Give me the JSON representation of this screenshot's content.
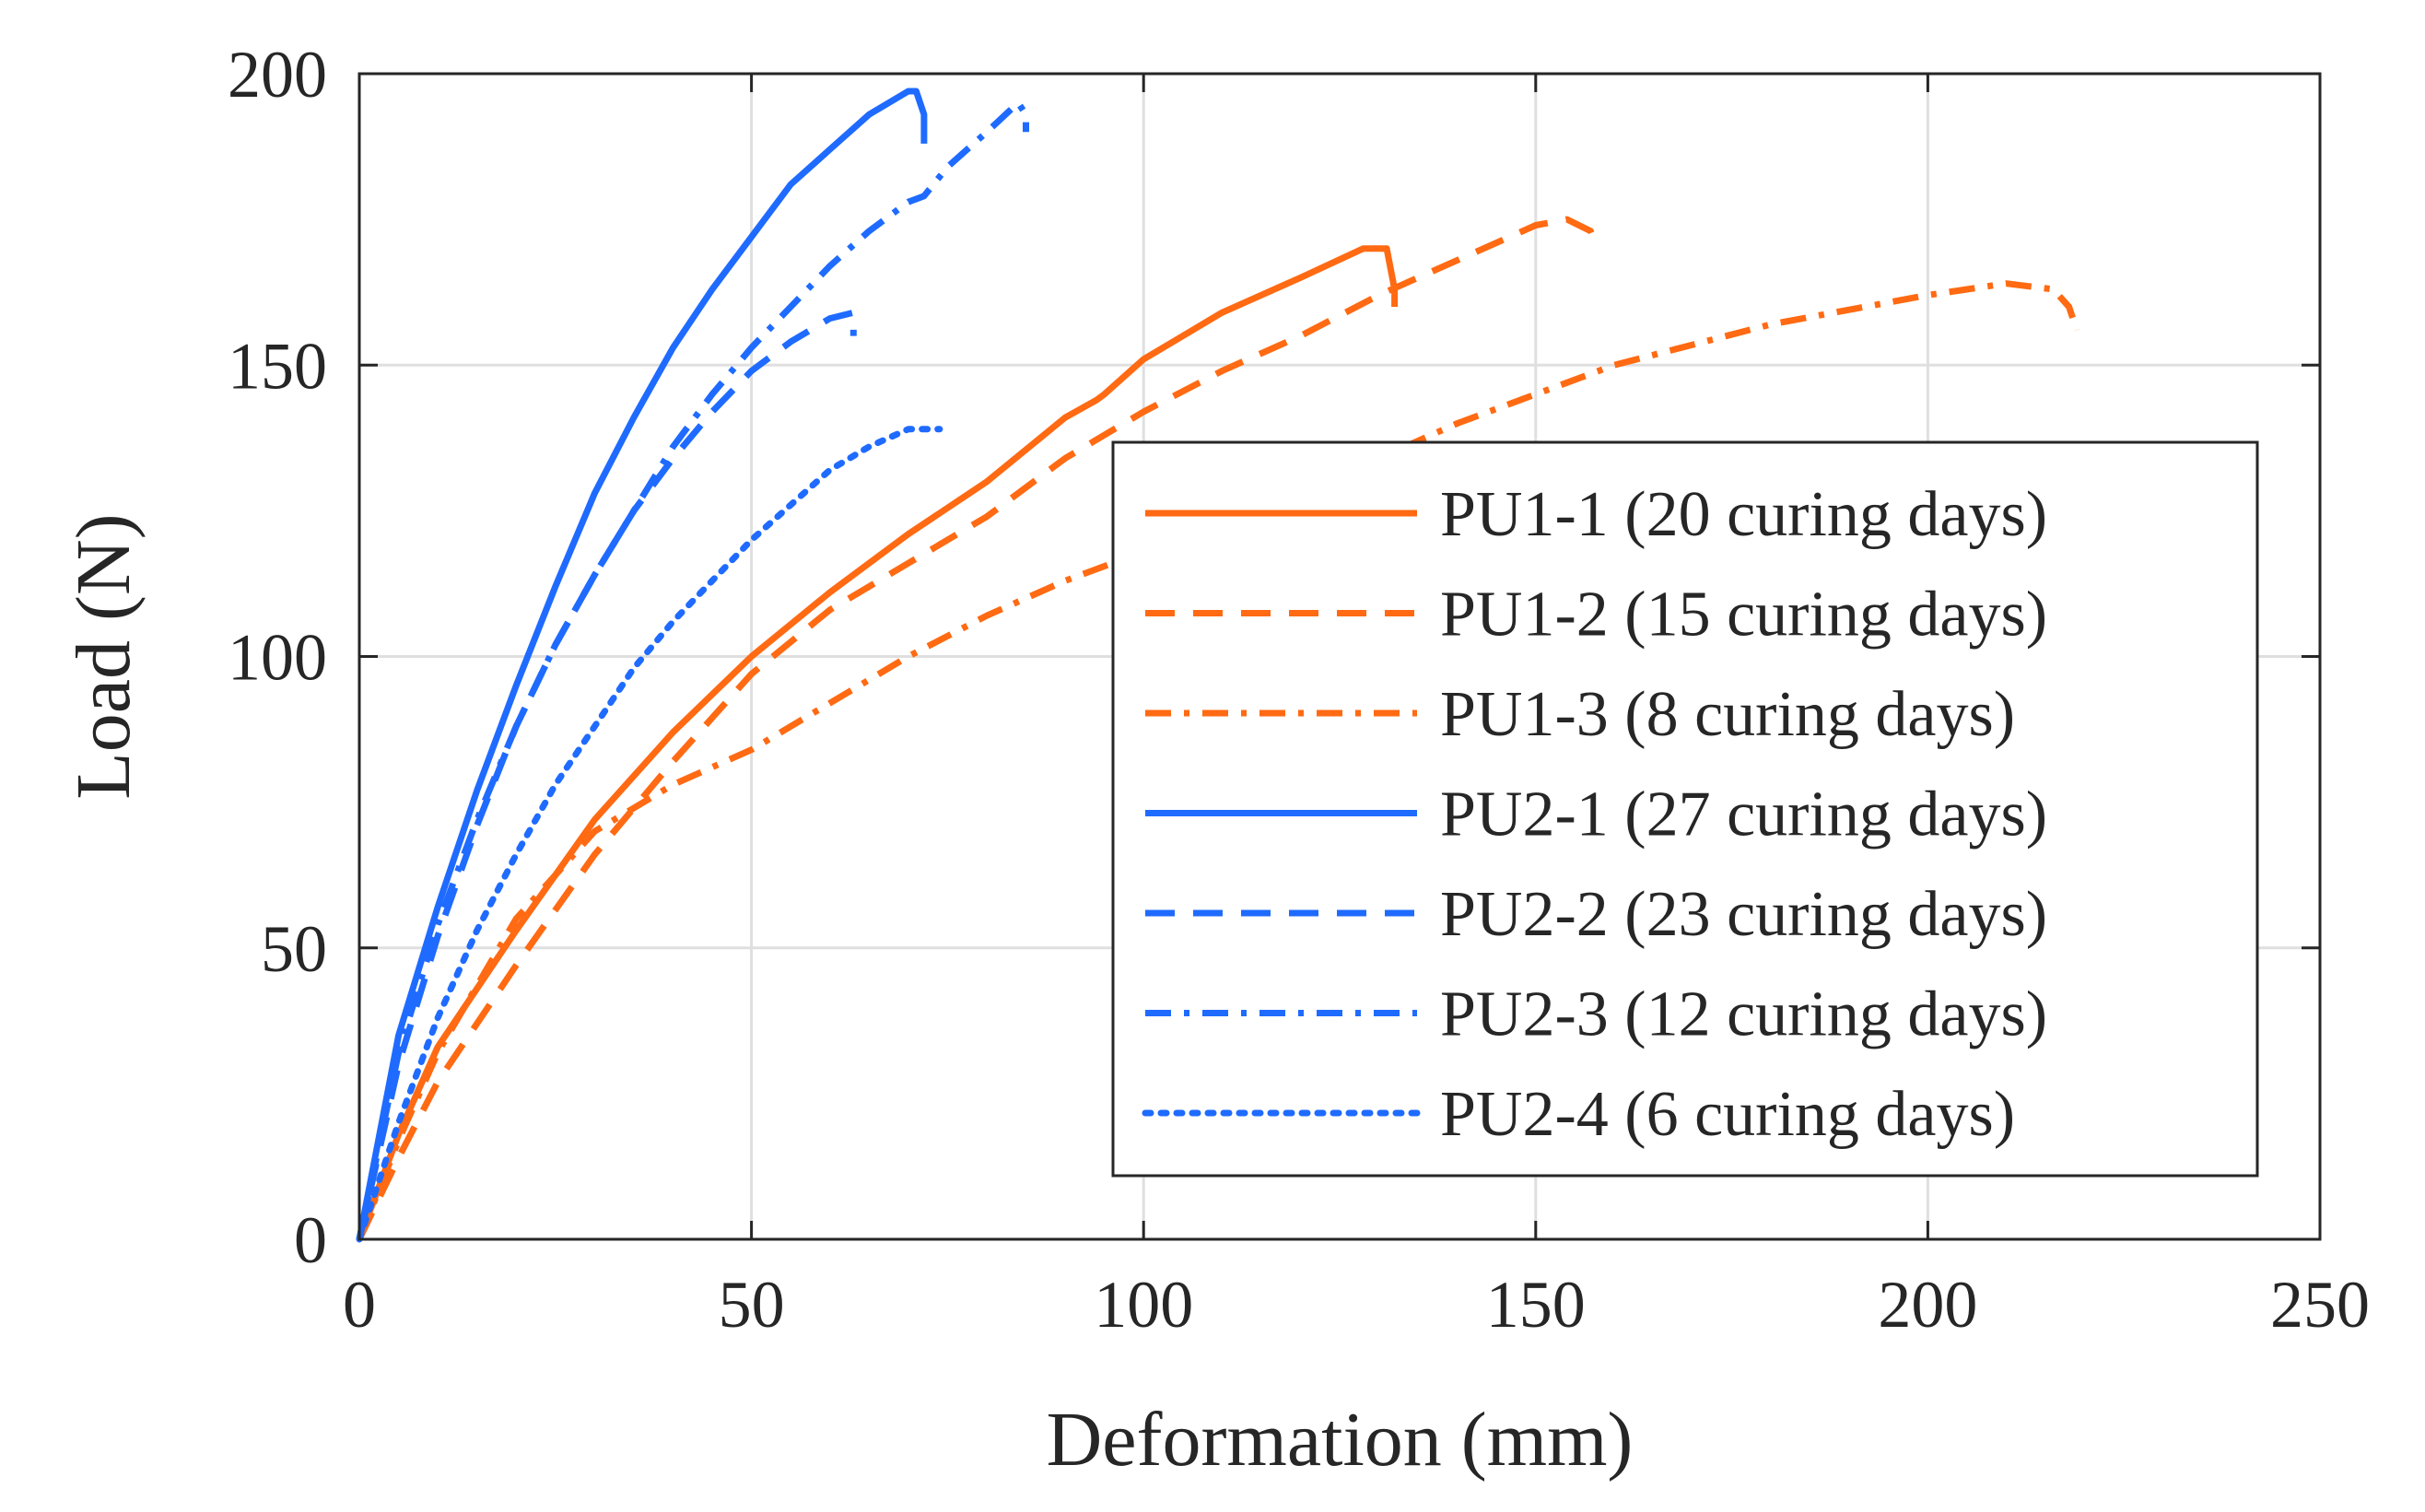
{
  "chart_data": {
    "type": "line",
    "xlabel": "Deformation (mm)",
    "ylabel": "Load (N)",
    "xlim": [
      0,
      250
    ],
    "ylim": [
      0,
      200
    ],
    "xticks": [
      "0",
      "50",
      "100",
      "150",
      "200",
      "250"
    ],
    "yticks": [
      "0",
      "50",
      "100",
      "150",
      "200"
    ],
    "xtick_values": [
      0,
      50,
      100,
      150,
      200,
      250
    ],
    "ytick_values": [
      0,
      50,
      100,
      150,
      200
    ],
    "grid": true,
    "legend_position": "right-center",
    "series": [
      {
        "name": "PU1-1 (20 curing days)",
        "color": "#FF6A13",
        "style": "solid",
        "x": [
          0,
          5,
          10,
          20,
          30,
          40,
          50,
          60,
          70,
          80,
          90,
          94,
          95,
          100,
          110,
          120,
          128,
          131,
          132,
          132
        ],
        "y": [
          0,
          18,
          33,
          53,
          72,
          87,
          100,
          111,
          121,
          130,
          141,
          144,
          145,
          151,
          159,
          165,
          170,
          170,
          163,
          160
        ]
      },
      {
        "name": "PU1-2 (15 curing days)",
        "color": "#FF6A13",
        "style": "dashed",
        "x": [
          0,
          5,
          10,
          20,
          30,
          40,
          50,
          60,
          70,
          80,
          90,
          100,
          110,
          120,
          130,
          140,
          150,
          154,
          157,
          158
        ],
        "y": [
          0,
          14,
          27,
          47,
          66,
          82,
          97,
          108,
          116,
          124,
          134,
          142,
          149,
          155,
          162,
          168,
          174,
          175,
          173,
          170
        ]
      },
      {
        "name": "PU1-3 (8 curing days)",
        "color": "#FF6A13",
        "style": "dashdot",
        "x": [
          0,
          5,
          10,
          20,
          30,
          40,
          50,
          60,
          70,
          80,
          90,
          100,
          120,
          140,
          160,
          180,
          200,
          210,
          216,
          218,
          219
        ],
        "y": [
          0,
          17,
          32,
          55,
          70,
          78,
          84,
          92,
          100,
          107,
          113,
          118,
          128,
          140,
          150,
          157,
          162,
          164,
          163,
          160,
          156
        ]
      },
      {
        "name": "PU2-1 (27 curing days)",
        "color": "#1F6BFF",
        "style": "solid",
        "x": [
          0,
          5,
          10,
          15,
          20,
          25,
          30,
          35,
          40,
          45,
          50,
          55,
          60,
          65,
          70,
          71,
          72,
          72
        ],
        "y": [
          0,
          35,
          57,
          77,
          95,
          112,
          128,
          141,
          153,
          163,
          172,
          181,
          187,
          193,
          197,
          197,
          193,
          188
        ]
      },
      {
        "name": "PU2-2 (23 curing days)",
        "color": "#1F6BFF",
        "style": "dashed",
        "x": [
          0,
          5,
          10,
          15,
          20,
          25,
          30,
          35,
          40,
          45,
          50,
          55,
          60,
          63,
          63
        ],
        "y": [
          0,
          30,
          52,
          71,
          88,
          102,
          114,
          125,
          134,
          142,
          149,
          154,
          158,
          159,
          155
        ]
      },
      {
        "name": "PU2-3 (12 curing days)",
        "color": "#1F6BFF",
        "style": "dashdot",
        "x": [
          0,
          5,
          10,
          15,
          20,
          25,
          30,
          35,
          40,
          45,
          50,
          55,
          60,
          65,
          70,
          72,
          75,
          80,
          84,
          85,
          85
        ],
        "y": [
          0,
          32,
          54,
          72,
          88,
          102,
          114,
          125,
          136,
          145,
          153,
          160,
          167,
          173,
          178,
          179,
          184,
          190,
          195,
          193,
          190
        ]
      },
      {
        "name": "PU2-4 (6 curing days)",
        "color": "#1F6BFF",
        "style": "dotted",
        "x": [
          0,
          5,
          10,
          15,
          20,
          25,
          30,
          35,
          40,
          45,
          50,
          55,
          60,
          65,
          70,
          74
        ],
        "y": [
          0,
          20,
          38,
          53,
          66,
          78,
          88,
          98,
          106,
          113,
          120,
          126,
          132,
          136,
          139,
          139
        ]
      }
    ]
  }
}
